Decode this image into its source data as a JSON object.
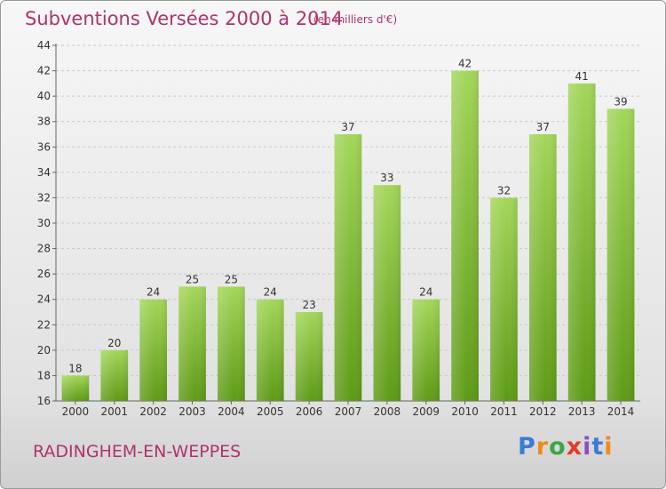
{
  "header": {
    "title": "Subventions Versées 2000 à 2014",
    "unit": "(en milliers d'€)"
  },
  "footer": {
    "commune": "RADINGHEM-EN-WEPPES",
    "logo_text": "Proxiti"
  },
  "colors": {
    "title": "#b0326e",
    "bar_light": "#9fd356",
    "bar_dark": "#5f9c17"
  },
  "chart_data": {
    "type": "bar",
    "title": "Subventions Versées 2000 à 2014",
    "subtitle": "(en milliers d'€)",
    "xlabel": "",
    "ylabel": "",
    "categories": [
      "2000",
      "2001",
      "2002",
      "2003",
      "2004",
      "2005",
      "2006",
      "2007",
      "2008",
      "2009",
      "2010",
      "2011",
      "2012",
      "2013",
      "2014"
    ],
    "values": [
      18,
      20,
      24,
      25,
      25,
      24,
      23,
      37,
      33,
      24,
      42,
      32,
      37,
      41,
      39
    ],
    "ylim": [
      16,
      44
    ],
    "yticks": [
      16,
      18,
      20,
      22,
      24,
      26,
      28,
      30,
      32,
      34,
      36,
      38,
      40,
      42,
      44
    ],
    "grid": true,
    "legend": "none"
  }
}
